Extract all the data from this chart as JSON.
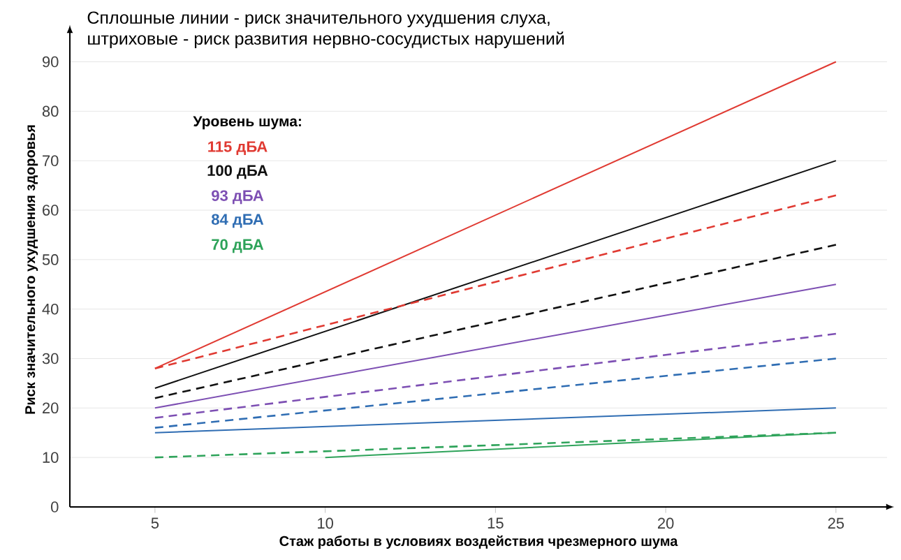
{
  "chart_data": {
    "type": "line",
    "title": "Сплошные линии - риск значительного ухудшения слуха,\nштриховые - риск развития нервно-сосудистых нарушений",
    "xlabel": "Стаж работы в условиях воздействия чрезмерного шума",
    "ylabel": "Риск значительного ухудшения здоровья",
    "legend_title": "Уровень шума:",
    "legend": "top left",
    "grid": "y",
    "xlim": [
      2.5,
      26.5
    ],
    "ylim": [
      0,
      96
    ],
    "xticks": [
      5,
      10,
      15,
      20,
      25
    ],
    "yticks": [
      0,
      10,
      20,
      30,
      40,
      50,
      60,
      70,
      80,
      90
    ],
    "series": [
      {
        "name": "115 дБА",
        "color": "#e03a32",
        "x": [
          5,
          25
        ],
        "values": [
          28,
          90
        ],
        "line_style": "solid"
      },
      {
        "name": "100 дБА",
        "color": "#111111",
        "x": [
          5,
          25
        ],
        "values": [
          24,
          70
        ],
        "line_style": "solid"
      },
      {
        "name": "93 дБА",
        "color": "#7d4fb3",
        "x": [
          5,
          25
        ],
        "values": [
          20,
          45
        ],
        "line_style": "solid"
      },
      {
        "name": "84 дБА",
        "color": "#2f6db3",
        "x": [
          5,
          25
        ],
        "values": [
          15,
          20
        ],
        "line_style": "solid"
      },
      {
        "name": "70 дБА",
        "color": "#2ea35a",
        "x": [
          10,
          25
        ],
        "values": [
          10,
          15
        ],
        "line_style": "solid"
      },
      {
        "color": "#e03a32",
        "x": [
          5,
          25
        ],
        "values": [
          28,
          63
        ],
        "line_style": "dashed"
      },
      {
        "color": "#111111",
        "x": [
          5,
          25
        ],
        "values": [
          22,
          53
        ],
        "line_style": "dashed"
      },
      {
        "color": "#7d4fb3",
        "x": [
          5,
          25
        ],
        "values": [
          18,
          35
        ],
        "line_style": "dashed"
      },
      {
        "color": "#2f6db3",
        "x": [
          5,
          25
        ],
        "values": [
          16,
          30
        ],
        "line_style": "dashed"
      },
      {
        "color": "#2ea35a",
        "x": [
          5,
          25
        ],
        "values": [
          10,
          15
        ],
        "line_style": "dashed"
      }
    ]
  }
}
